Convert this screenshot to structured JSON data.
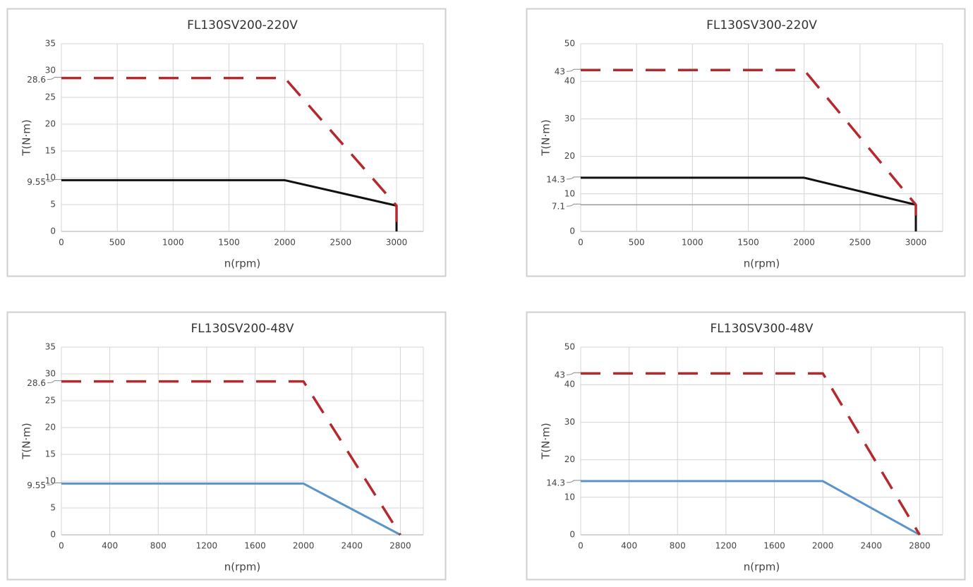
{
  "chart_data": [
    {
      "type": "line",
      "title": "FL130SV200-220V",
      "xlabel": "n(rpm)",
      "ylabel": "T(N·m)",
      "xlim": [
        0,
        3240
      ],
      "xticks": [
        0,
        500,
        1000,
        1500,
        2000,
        2500,
        3000
      ],
      "ylim": [
        0,
        35
      ],
      "yticks": [
        0,
        5,
        10,
        15,
        20,
        25,
        30,
        35
      ],
      "grid": true,
      "callout_ticks": [
        28.6,
        9.55
      ],
      "series": [
        {
          "color": "#111111",
          "dash": false,
          "x": [
            0,
            2000,
            3000,
            3000
          ],
          "values": [
            9.55,
            9.55,
            4.8,
            0
          ]
        },
        {
          "color": "#b5282e",
          "dash": true,
          "x": [
            0,
            2000,
            3000,
            3000
          ],
          "values": [
            28.6,
            28.6,
            4.8,
            1
          ]
        }
      ]
    },
    {
      "type": "line",
      "title": "FL130SV300-220V",
      "xlabel": "n(rpm)",
      "ylabel": "T(N·m)",
      "xlim": [
        0,
        3240
      ],
      "xticks": [
        0,
        500,
        1000,
        1500,
        2000,
        2500,
        3000
      ],
      "ylim": [
        0,
        50
      ],
      "yticks": [
        0,
        10,
        20,
        30,
        40,
        50
      ],
      "grid": true,
      "callout_ticks": [
        43,
        14.3,
        7.1
      ],
      "series": [
        {
          "color": "#999999",
          "dash": false,
          "x": [
            0,
            3000
          ],
          "values": [
            7.1,
            7.1
          ]
        },
        {
          "color": "#111111",
          "dash": false,
          "x": [
            0,
            2000,
            3000,
            3000
          ],
          "values": [
            14.3,
            14.3,
            7.1,
            0
          ]
        },
        {
          "color": "#b5282e",
          "dash": true,
          "x": [
            0,
            2000,
            3000,
            3000
          ],
          "values": [
            43,
            43,
            7.1,
            1.5
          ]
        }
      ]
    },
    {
      "type": "line",
      "title": "FL130SV200-48V",
      "xlabel": "n(rpm)",
      "ylabel": "T(N·m)",
      "xlim": [
        0,
        2990
      ],
      "xticks": [
        0,
        400,
        800,
        1200,
        1600,
        2000,
        2400,
        2800
      ],
      "ylim": [
        0,
        35
      ],
      "yticks": [
        0,
        5,
        10,
        15,
        20,
        25,
        30,
        35
      ],
      "grid": true,
      "callout_ticks": [
        28.6,
        9.55
      ],
      "series": [
        {
          "color": "#5a94c8",
          "dash": false,
          "x": [
            0,
            2000,
            2800
          ],
          "values": [
            9.55,
            9.55,
            0
          ]
        },
        {
          "color": "#b5282e",
          "dash": true,
          "x": [
            0,
            2000,
            2800
          ],
          "values": [
            28.6,
            28.6,
            0
          ]
        }
      ]
    },
    {
      "type": "line",
      "title": "FL130SV300-48V",
      "xlabel": "n(rpm)",
      "ylabel": "T(N·m)",
      "xlim": [
        0,
        2990
      ],
      "xticks": [
        0,
        400,
        800,
        1200,
        1600,
        2000,
        2400,
        2800
      ],
      "ylim": [
        0,
        50
      ],
      "yticks": [
        0,
        10,
        20,
        30,
        40,
        50
      ],
      "grid": true,
      "callout_ticks": [
        43,
        14.3
      ],
      "series": [
        {
          "color": "#5a94c8",
          "dash": false,
          "x": [
            0,
            2000,
            2800
          ],
          "values": [
            14.3,
            14.3,
            0
          ]
        },
        {
          "color": "#b5282e",
          "dash": true,
          "x": [
            0,
            2000,
            2800
          ],
          "values": [
            43,
            43,
            0
          ]
        }
      ]
    }
  ]
}
